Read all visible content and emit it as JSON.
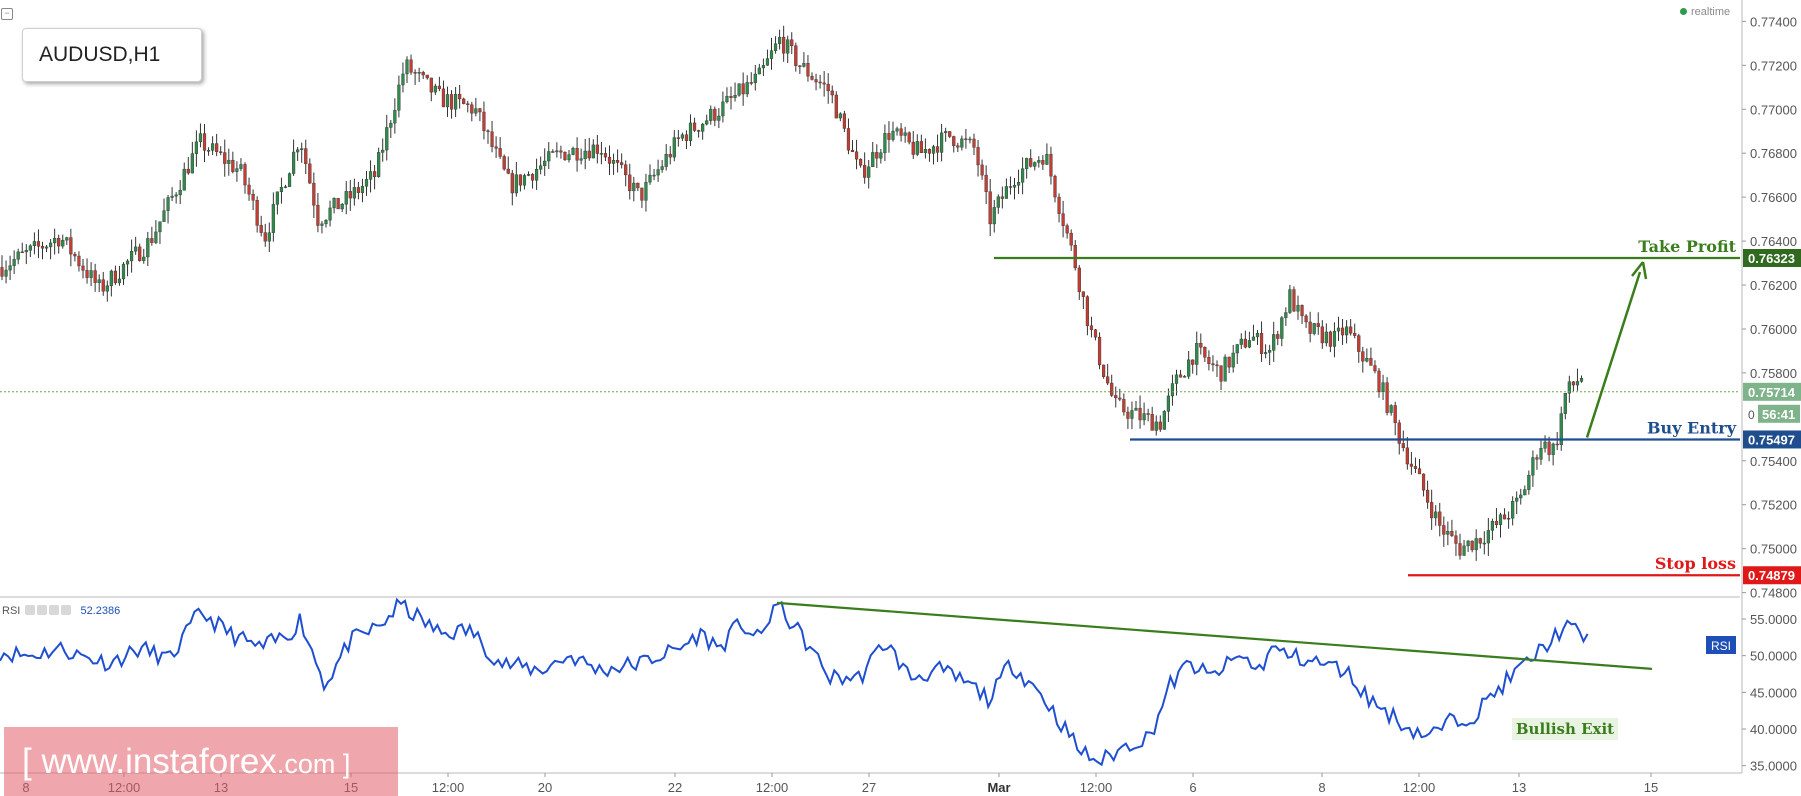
{
  "window": {
    "symbol": "AUDUSD,H1",
    "status": "realtime",
    "watermark_text": "[ www.instaforex",
    "watermark_suffix": ".com ]"
  },
  "chart_data": {
    "type": "candlestick",
    "title": "AUDUSD,H1",
    "y_axis": {
      "ticks": [
        "0.77400",
        "0.77200",
        "0.77000",
        "0.76800",
        "0.76600",
        "0.76400",
        "0.76200",
        "0.76000",
        "0.75800",
        "0.75400",
        "0.75200",
        "0.75000",
        "0.74800"
      ],
      "ylim": [
        0.7478,
        0.7747
      ]
    },
    "x_axis": {
      "ticks": [
        "8",
        "12:00",
        "13",
        "15",
        "12:00",
        "20",
        "22",
        "12:00",
        "27",
        "Mar",
        "12:00",
        "6",
        "8",
        "12:00",
        "13",
        "15"
      ]
    },
    "grid": false,
    "price_anchors": [
      {
        "date": "8",
        "price": 0.763
      },
      {
        "date": "15",
        "price": 0.7622
      },
      {
        "date": "15 12:00",
        "price": 0.772
      },
      {
        "date": "20",
        "price": 0.7665
      },
      {
        "date": "22",
        "price": 0.7688
      },
      {
        "date": "22 12:00",
        "price": 0.773
      },
      {
        "date": "27",
        "price": 0.7675
      },
      {
        "date": "Mar",
        "price": 0.7658
      },
      {
        "date": "Mar 12:00",
        "price": 0.7575
      },
      {
        "date": "6",
        "price": 0.758
      },
      {
        "date": "8",
        "price": 0.7595
      },
      {
        "date": "8 12:00",
        "price": 0.75
      },
      {
        "date": "13",
        "price": 0.7578
      }
    ],
    "levels": [
      {
        "label": "Take Profit",
        "value": "0.76323",
        "price": 0.76323,
        "color": "#3a7d1c"
      },
      {
        "label": "",
        "value": "0.75714",
        "price": 0.75714,
        "color": "#6aa84f"
      },
      {
        "label": "Buy Entry",
        "value": "0.75497",
        "price": 0.75497,
        "color": "#1f4e8f"
      },
      {
        "label": "Stop loss",
        "value": "0.74879",
        "price": 0.74879,
        "color": "#e01818"
      }
    ],
    "countdown": "56:41",
    "countdown_prefix": "0",
    "rsi": {
      "label": "RSI",
      "value": "52.2386",
      "badge": "RSI",
      "ticks": [
        "55.0000",
        "50.0000",
        "45.0000",
        "40.0000",
        "35.0000"
      ],
      "ylim": [
        34,
        58
      ],
      "trendline": {
        "from": 57.2,
        "to": 48.2
      },
      "annotation": "Bullish Exit"
    }
  }
}
